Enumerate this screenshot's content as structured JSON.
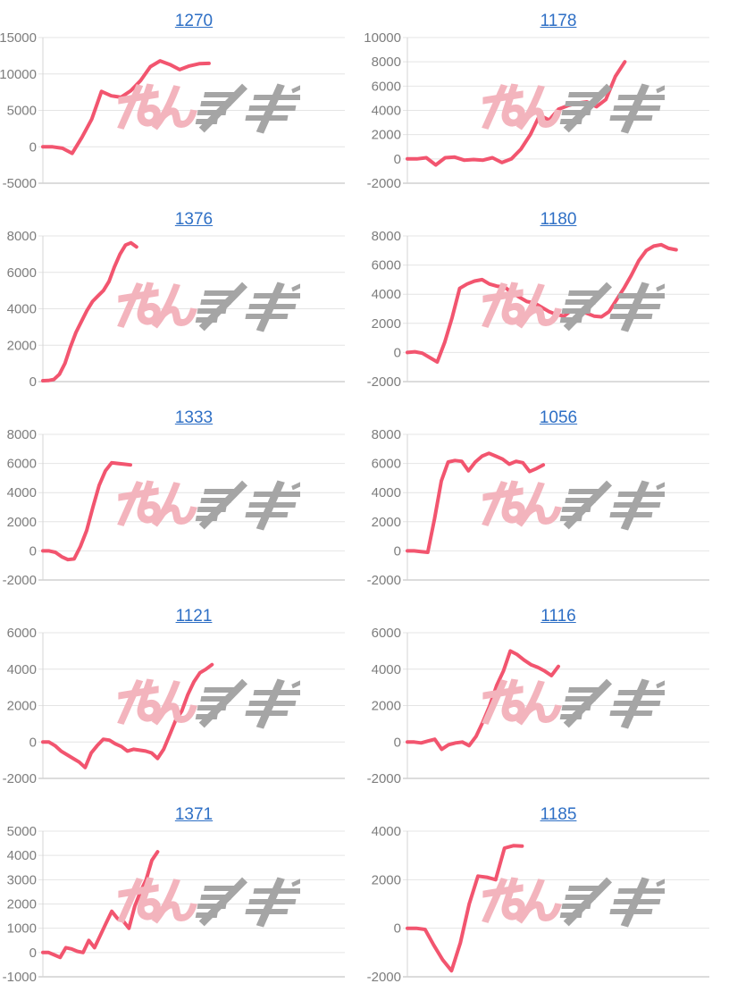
{
  "page": {
    "description": "Grid of ten slot-machine daily payout line charts, each titled with a machine number link",
    "background": "#ffffff"
  },
  "style": {
    "line_color": "#f2556f",
    "title_color": "#2e6fc5",
    "grid_color": "#e4e4e4",
    "grid_bottom_color": "#b9b9b9",
    "axis_color": "#d5d5d5",
    "tick_label_color": "#7d7d7d",
    "watermark_pink": "#f3b4bd",
    "watermark_gray": "#a5a5a5"
  },
  "watermark": {
    "name": "minrepo-logo-watermark",
    "pink_part": "みん",
    "gray_part": "レポ"
  },
  "chart_data": [
    {
      "type": "line",
      "title": "1270",
      "ylim": [
        -5000,
        15000
      ],
      "yticks": [
        15000,
        10000,
        5000,
        0,
        -5000
      ],
      "x_span": 0.55,
      "grid": true,
      "values": [
        0,
        0,
        -200,
        -900,
        1300,
        3800,
        7600,
        7000,
        6800,
        7700,
        9100,
        11000,
        11800,
        11300,
        10600,
        11100,
        11400,
        11450
      ]
    },
    {
      "type": "line",
      "title": "1178",
      "ylim": [
        -2000,
        10000
      ],
      "yticks": [
        10000,
        8000,
        6000,
        4000,
        2000,
        0,
        -2000
      ],
      "x_span": 0.72,
      "grid": true,
      "values": [
        0,
        0,
        100,
        -500,
        100,
        150,
        -100,
        -50,
        -100,
        100,
        -300,
        0,
        800,
        2000,
        3600,
        3200,
        4100,
        4400,
        4600,
        4700,
        4300,
        4900,
        6800,
        8000
      ]
    },
    {
      "type": "line",
      "title": "1376",
      "ylim": [
        0,
        8000
      ],
      "yticks": [
        8000,
        6000,
        4000,
        2000,
        0
      ],
      "x_span": 0.31,
      "grid": true,
      "values": [
        50,
        60,
        120,
        400,
        1000,
        1900,
        2700,
        3300,
        3900,
        4400,
        4700,
        5000,
        5500,
        6300,
        7000,
        7500,
        7620,
        7400
      ]
    },
    {
      "type": "line",
      "title": "1180",
      "ylim": [
        -2000,
        8000
      ],
      "yticks": [
        8000,
        6000,
        4000,
        2000,
        0,
        -2000
      ],
      "x_span": 0.89,
      "grid": true,
      "values": [
        0,
        50,
        -50,
        -350,
        -650,
        700,
        2400,
        4400,
        4700,
        4900,
        5000,
        4700,
        4550,
        4500,
        4100,
        3800,
        3500,
        3400,
        3100,
        2800,
        2600,
        2500,
        2900,
        2800,
        2700,
        2500,
        2450,
        2800,
        3600,
        4400,
        5300,
        6300,
        7000,
        7300,
        7400,
        7150,
        7050
      ]
    },
    {
      "type": "line",
      "title": "1333",
      "ylim": [
        -2000,
        8000
      ],
      "yticks": [
        8000,
        6000,
        4000,
        2000,
        0,
        -2000
      ],
      "x_span": 0.29,
      "grid": true,
      "values": [
        0,
        0,
        -100,
        -400,
        -600,
        -550,
        300,
        1400,
        3000,
        4500,
        5500,
        6050,
        6000,
        5950,
        5900
      ]
    },
    {
      "type": "line",
      "title": "1056",
      "ylim": [
        -2000,
        8000
      ],
      "yticks": [
        8000,
        6000,
        4000,
        2000,
        0,
        -2000
      ],
      "x_span": 0.45,
      "grid": true,
      "values": [
        0,
        0,
        -50,
        -100,
        2200,
        4800,
        6100,
        6200,
        6150,
        5500,
        6100,
        6500,
        6700,
        6500,
        6300,
        5950,
        6150,
        6050,
        5450,
        5650,
        5900
      ]
    },
    {
      "type": "line",
      "title": "1121",
      "ylim": [
        -2000,
        6000
      ],
      "yticks": [
        6000,
        4000,
        2000,
        0,
        -2000
      ],
      "x_span": 0.56,
      "grid": true,
      "values": [
        0,
        0,
        -200,
        -500,
        -700,
        -900,
        -1100,
        -1400,
        -600,
        -200,
        150,
        100,
        -100,
        -250,
        -500,
        -400,
        -450,
        -500,
        -600,
        -900,
        -400,
        400,
        1200,
        1700,
        2600,
        3300,
        3800,
        4000,
        4250
      ]
    },
    {
      "type": "line",
      "title": "1116",
      "ylim": [
        -2000,
        6000
      ],
      "yticks": [
        6000,
        4000,
        2000,
        0,
        -2000
      ],
      "x_span": 0.5,
      "grid": true,
      "values": [
        0,
        0,
        -50,
        50,
        150,
        -400,
        -150,
        -50,
        0,
        -200,
        300,
        1100,
        2000,
        3100,
        3900,
        5000,
        4800,
        4500,
        4250,
        4100,
        3900,
        3650,
        4150
      ]
    },
    {
      "type": "line",
      "title": "1371",
      "ylim": [
        -1000,
        5000
      ],
      "yticks": [
        5000,
        4000,
        3000,
        2000,
        1000,
        0,
        -1000
      ],
      "x_span": 0.38,
      "grid": true,
      "values": [
        0,
        0,
        -100,
        -200,
        200,
        150,
        50,
        0,
        500,
        200,
        700,
        1200,
        1700,
        1400,
        1300,
        1000,
        1900,
        2500,
        3000,
        3800,
        4150
      ]
    },
    {
      "type": "line",
      "title": "1185",
      "ylim": [
        -2000,
        4000
      ],
      "yticks": [
        4000,
        2000,
        0,
        -2000
      ],
      "x_span": 0.38,
      "grid": true,
      "values": [
        0,
        0,
        -50,
        -700,
        -1300,
        -1750,
        -600,
        1000,
        2150,
        2100,
        2000,
        3300,
        3400,
        3380
      ]
    }
  ]
}
